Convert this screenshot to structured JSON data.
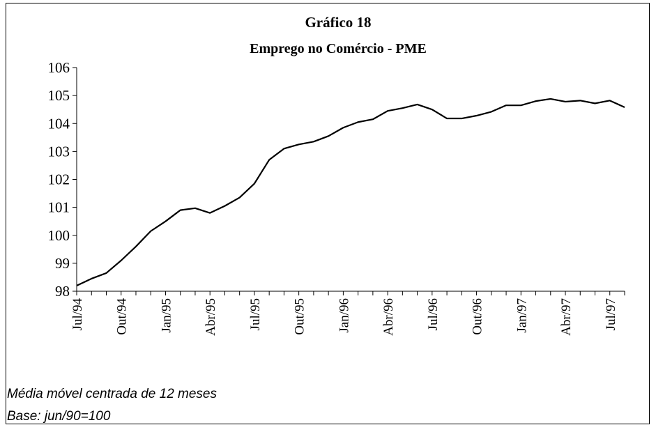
{
  "chart_data": {
    "type": "line",
    "title": "Gráfico 18",
    "subtitle": "Emprego no Comércio - PME",
    "notes": [
      "Média móvel centrada de 12 meses",
      "Base: jun/90=100"
    ],
    "categories": [
      "Jul/94",
      null,
      null,
      "Out/94",
      null,
      null,
      "Jan/95",
      null,
      null,
      "Abr/95",
      null,
      null,
      "Jul/95",
      null,
      null,
      "Out/95",
      null,
      null,
      "Jan/96",
      null,
      null,
      "Abr/96",
      null,
      null,
      "Jul/96",
      null,
      null,
      "Out/96",
      null,
      null,
      "Jan/97",
      null,
      null,
      "Abr/97",
      null,
      null,
      "Jul/97",
      null
    ],
    "series": [
      {
        "name": "Emprego no Comércio",
        "color": "#000000",
        "values": [
          98.2,
          98.45,
          98.65,
          99.1,
          99.6,
          100.15,
          100.5,
          100.9,
          100.97,
          100.8,
          101.05,
          101.35,
          101.85,
          102.7,
          103.1,
          103.25,
          103.35,
          103.55,
          103.85,
          104.05,
          104.15,
          104.45,
          104.55,
          104.68,
          104.5,
          104.18,
          104.18,
          104.28,
          104.42,
          104.65,
          104.65,
          104.8,
          104.88,
          104.78,
          104.82,
          104.72,
          104.82,
          104.58
        ]
      }
    ],
    "ylim": [
      98,
      106
    ],
    "yticks": [
      98,
      99,
      100,
      101,
      102,
      103,
      104,
      105,
      106
    ],
    "grid": false
  }
}
